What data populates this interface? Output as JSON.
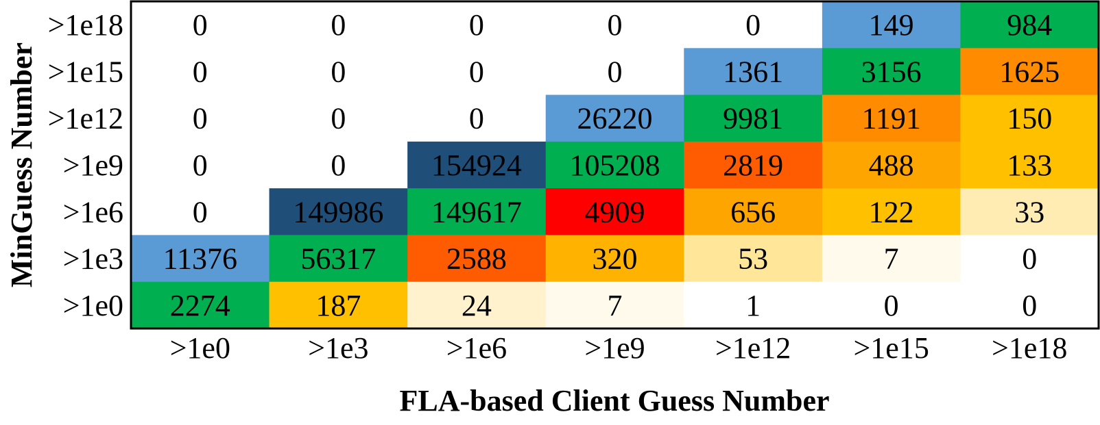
{
  "chart_data": {
    "type": "heatmap",
    "title": "",
    "xlabel": "FLA-based Client Guess Number",
    "ylabel": "MinGuess Number",
    "x_categories": [
      ">1e0",
      ">1e3",
      ">1e6",
      ">1e9",
      ">1e12",
      ">1e15",
      ">1e18"
    ],
    "y_categories": [
      ">1e18",
      ">1e15",
      ">1e12",
      ">1e9",
      ">1e6",
      ">1e3",
      ">1e0"
    ],
    "values": [
      [
        0,
        0,
        0,
        0,
        0,
        149,
        984
      ],
      [
        0,
        0,
        0,
        0,
        1361,
        3156,
        1625
      ],
      [
        0,
        0,
        0,
        26220,
        9981,
        1191,
        150
      ],
      [
        0,
        0,
        154924,
        105208,
        2819,
        488,
        133
      ],
      [
        0,
        149986,
        149617,
        4909,
        656,
        122,
        33
      ],
      [
        11376,
        56317,
        2588,
        320,
        53,
        7,
        0
      ],
      [
        2274,
        187,
        24,
        7,
        1,
        0,
        0
      ]
    ],
    "cell_colors": [
      [
        "#ffffff",
        "#ffffff",
        "#ffffff",
        "#ffffff",
        "#ffffff",
        "#5b9bd5",
        "#00b050"
      ],
      [
        "#ffffff",
        "#ffffff",
        "#ffffff",
        "#ffffff",
        "#5b9bd5",
        "#00b050",
        "#ff8c00"
      ],
      [
        "#ffffff",
        "#ffffff",
        "#ffffff",
        "#5b9bd5",
        "#00b050",
        "#ff8c00",
        "#ffc000"
      ],
      [
        "#ffffff",
        "#ffffff",
        "#1f4e79",
        "#00b050",
        "#ff5b00",
        "#ffa500",
        "#ffc000"
      ],
      [
        "#ffffff",
        "#1f4e79",
        "#00b050",
        "#ff0000",
        "#ffa500",
        "#ffc000",
        "#ffecb3"
      ],
      [
        "#5b9bd5",
        "#00b050",
        "#ff5b00",
        "#ffb300",
        "#ffe699",
        "#fffaeb",
        "#ffffff"
      ],
      [
        "#00b050",
        "#ffc000",
        "#fff2cc",
        "#fffaeb",
        "#ffffff",
        "#ffffff",
        "#ffffff"
      ]
    ],
    "grid": false,
    "legend": "none"
  }
}
